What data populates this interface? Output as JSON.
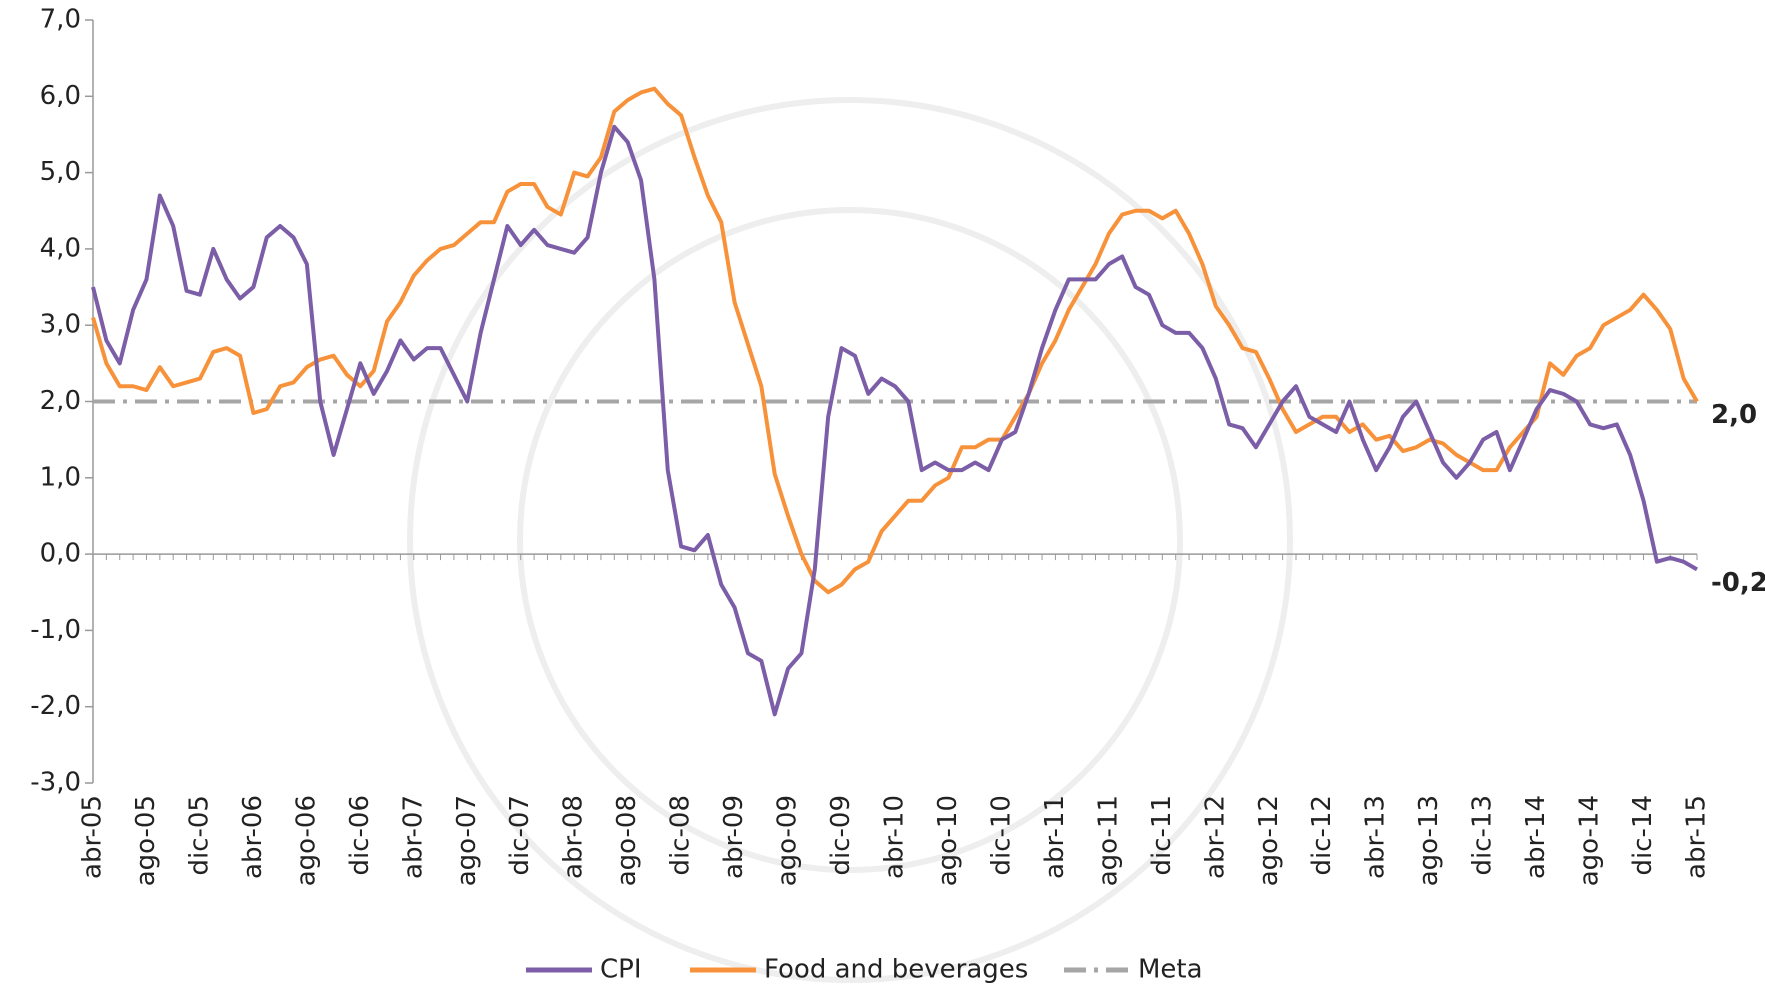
{
  "chart_data": {
    "type": "line",
    "categories": [
      "abr-05",
      null,
      null,
      null,
      "ago-05",
      null,
      null,
      null,
      "dic-05",
      null,
      null,
      null,
      "abr-06",
      null,
      null,
      null,
      "ago-06",
      null,
      null,
      null,
      "dic-06",
      null,
      null,
      null,
      "abr-07",
      null,
      null,
      null,
      "ago-07",
      null,
      null,
      null,
      "dic-07",
      null,
      null,
      null,
      "abr-08",
      null,
      null,
      null,
      "ago-08",
      null,
      null,
      null,
      "dic-08",
      null,
      null,
      null,
      "abr-09",
      null,
      null,
      null,
      "ago-09",
      null,
      null,
      null,
      "dic-09",
      null,
      null,
      null,
      "abr-10",
      null,
      null,
      null,
      "ago-10",
      null,
      null,
      null,
      "dic-10",
      null,
      null,
      null,
      "abr-11",
      null,
      null,
      null,
      "ago-11",
      null,
      null,
      null,
      "dic-11",
      null,
      null,
      null,
      "abr-12",
      null,
      null,
      null,
      "ago-12",
      null,
      null,
      null,
      "dic-12",
      null,
      null,
      null,
      "abr-13",
      null,
      null,
      null,
      "ago-13",
      null,
      null,
      null,
      "dic-13",
      null,
      null,
      null,
      "abr-14",
      null,
      null,
      null,
      "ago-14",
      null,
      null,
      null,
      "dic-14",
      null,
      null,
      null,
      "abr-15"
    ],
    "series": [
      {
        "name": "CPI",
        "color": "#7b5ea7",
        "values": [
          3.5,
          2.8,
          2.5,
          3.2,
          3.6,
          4.7,
          4.3,
          3.45,
          3.4,
          4.0,
          3.6,
          3.35,
          3.5,
          4.15,
          4.3,
          4.15,
          3.8,
          2.0,
          1.3,
          1.9,
          2.5,
          2.1,
          2.4,
          2.8,
          2.55,
          2.7,
          2.7,
          2.35,
          2.0,
          2.9,
          3.6,
          4.3,
          4.05,
          4.25,
          4.05,
          4.0,
          3.95,
          4.15,
          5.0,
          5.6,
          5.4,
          4.9,
          3.6,
          1.1,
          0.1,
          0.05,
          0.25,
          -0.4,
          -0.7,
          -1.3,
          -1.4,
          -2.1,
          -1.5,
          -1.3,
          -0.2,
          1.8,
          2.7,
          2.6,
          2.1,
          2.3,
          2.2,
          2.0,
          1.1,
          1.2,
          1.1,
          1.1,
          1.2,
          1.1,
          1.5,
          1.6,
          2.1,
          2.7,
          3.2,
          3.6,
          3.6,
          3.6,
          3.8,
          3.9,
          3.5,
          3.4,
          3.0,
          2.9,
          2.9,
          2.7,
          2.3,
          1.7,
          1.65,
          1.4,
          1.7,
          2.0,
          2.2,
          1.8,
          1.7,
          1.6,
          2.0,
          1.5,
          1.1,
          1.4,
          1.8,
          2.0,
          1.6,
          1.2,
          1.0,
          1.2,
          1.5,
          1.6,
          1.1,
          1.5,
          1.9,
          2.15,
          2.1,
          2.0,
          1.7,
          1.65,
          1.7,
          1.3,
          0.7,
          -0.1,
          -0.05,
          -0.1,
          -0.2
        ],
        "value_labels": [
          null,
          null,
          null,
          null,
          null,
          null,
          null,
          null,
          null,
          null,
          null,
          null,
          null,
          null,
          null,
          null,
          null,
          null,
          null,
          null,
          null,
          null,
          null,
          null,
          null,
          null,
          null,
          null,
          null,
          null,
          null,
          null,
          null,
          null,
          null,
          null,
          null,
          null,
          null,
          null,
          null,
          null,
          null,
          null,
          null,
          null,
          null,
          null,
          null,
          null,
          null,
          null,
          null,
          null,
          null,
          null,
          null,
          null,
          null,
          null,
          null,
          null,
          null,
          null,
          null,
          null,
          null,
          null,
          null,
          null,
          null,
          null,
          null,
          null,
          null,
          null,
          null,
          null,
          null,
          null,
          null,
          null,
          null,
          null,
          null,
          null,
          null,
          null,
          null,
          null,
          null,
          null,
          null,
          null,
          null,
          null,
          null,
          null,
          null,
          null,
          null,
          null,
          null,
          null,
          null,
          null,
          null,
          null,
          null,
          null,
          null,
          null,
          null,
          null,
          null,
          null,
          null,
          null,
          null,
          null,
          "-0,2"
        ]
      },
      {
        "name": "Food and beverages",
        "color": "#f7923a",
        "values": [
          3.1,
          2.5,
          2.2,
          2.2,
          2.15,
          2.45,
          2.2,
          2.25,
          2.3,
          2.65,
          2.7,
          2.6,
          1.85,
          1.9,
          2.2,
          2.25,
          2.45,
          2.55,
          2.6,
          2.35,
          2.2,
          2.4,
          3.05,
          3.3,
          3.65,
          3.85,
          4.0,
          4.05,
          4.2,
          4.35,
          4.35,
          4.75,
          4.85,
          4.85,
          4.55,
          4.45,
          5.0,
          4.95,
          5.2,
          5.8,
          5.95,
          6.05,
          6.1,
          5.9,
          5.75,
          5.2,
          4.7,
          4.35,
          3.3,
          2.75,
          2.2,
          1.05,
          0.5,
          0.0,
          -0.35,
          -0.5,
          -0.4,
          -0.2,
          -0.1,
          0.3,
          0.5,
          0.7,
          0.7,
          0.9,
          1.0,
          1.4,
          1.4,
          1.5,
          1.5,
          1.8,
          2.1,
          2.5,
          2.8,
          3.2,
          3.5,
          3.8,
          4.2,
          4.45,
          4.5,
          4.5,
          4.4,
          4.5,
          4.2,
          3.8,
          3.25,
          3.0,
          2.7,
          2.65,
          2.3,
          1.9,
          1.6,
          1.7,
          1.8,
          1.8,
          1.6,
          1.7,
          1.5,
          1.55,
          1.35,
          1.4,
          1.5,
          1.45,
          1.3,
          1.2,
          1.1,
          1.1,
          1.4,
          1.6,
          1.8,
          2.5,
          2.35,
          2.6,
          2.7,
          3.0,
          3.1,
          3.2,
          3.4,
          3.2,
          2.95,
          2.3,
          2.0
        ],
        "value_labels": [
          null,
          null,
          null,
          null,
          null,
          null,
          null,
          null,
          null,
          null,
          null,
          null,
          null,
          null,
          null,
          null,
          null,
          null,
          null,
          null,
          null,
          null,
          null,
          null,
          null,
          null,
          null,
          null,
          null,
          null,
          null,
          null,
          null,
          null,
          null,
          null,
          null,
          null,
          null,
          null,
          null,
          null,
          null,
          null,
          null,
          null,
          null,
          null,
          null,
          null,
          null,
          null,
          null,
          null,
          null,
          null,
          null,
          null,
          null,
          null,
          null,
          null,
          null,
          null,
          null,
          null,
          null,
          null,
          null,
          null,
          null,
          null,
          null,
          null,
          null,
          null,
          null,
          null,
          null,
          null,
          null,
          null,
          null,
          null,
          null,
          null,
          null,
          null,
          null,
          null,
          null,
          null,
          null,
          null,
          null,
          null,
          null,
          null,
          null,
          null,
          null,
          null,
          null,
          null,
          null,
          null,
          null,
          null,
          null,
          null,
          null,
          null,
          null,
          null,
          null,
          null,
          null,
          null,
          null,
          null,
          "2,0"
        ]
      },
      {
        "name": "Meta",
        "color": "#a6a6a6",
        "dash": "dashdot",
        "values": [
          2,
          2,
          2,
          2,
          2,
          2,
          2,
          2,
          2,
          2,
          2,
          2,
          2,
          2,
          2,
          2,
          2,
          2,
          2,
          2,
          2,
          2,
          2,
          2,
          2,
          2,
          2,
          2,
          2,
          2,
          2,
          2,
          2,
          2,
          2,
          2,
          2,
          2,
          2,
          2,
          2,
          2,
          2,
          2,
          2,
          2,
          2,
          2,
          2,
          2,
          2,
          2,
          2,
          2,
          2,
          2,
          2,
          2,
          2,
          2,
          2,
          2,
          2,
          2,
          2,
          2,
          2,
          2,
          2,
          2,
          2,
          2,
          2,
          2,
          2,
          2,
          2,
          2,
          2,
          2,
          2,
          2,
          2,
          2,
          2,
          2,
          2,
          2,
          2,
          2,
          2,
          2,
          2,
          2,
          2,
          2,
          2,
          2,
          2,
          2,
          2,
          2,
          2,
          2,
          2,
          2,
          2,
          2,
          2,
          2,
          2,
          2,
          2,
          2,
          2,
          2,
          2,
          2,
          2,
          2,
          2
        ]
      }
    ],
    "ylim": [
      -3,
      7
    ],
    "yticks": [
      {
        "value": -3,
        "label": "-3,0"
      },
      {
        "value": -2,
        "label": "-2,0"
      },
      {
        "value": -1,
        "label": "-1,0"
      },
      {
        "value": 0,
        "label": "0,0"
      },
      {
        "value": 1,
        "label": "1,0"
      },
      {
        "value": 2,
        "label": "2,0"
      },
      {
        "value": 3,
        "label": "3,0"
      },
      {
        "value": 4,
        "label": "4,0"
      },
      {
        "value": 5,
        "label": "5,0"
      },
      {
        "value": 6,
        "label": "6,0"
      },
      {
        "value": 7,
        "label": "7,0"
      }
    ],
    "legend": "bottom"
  }
}
